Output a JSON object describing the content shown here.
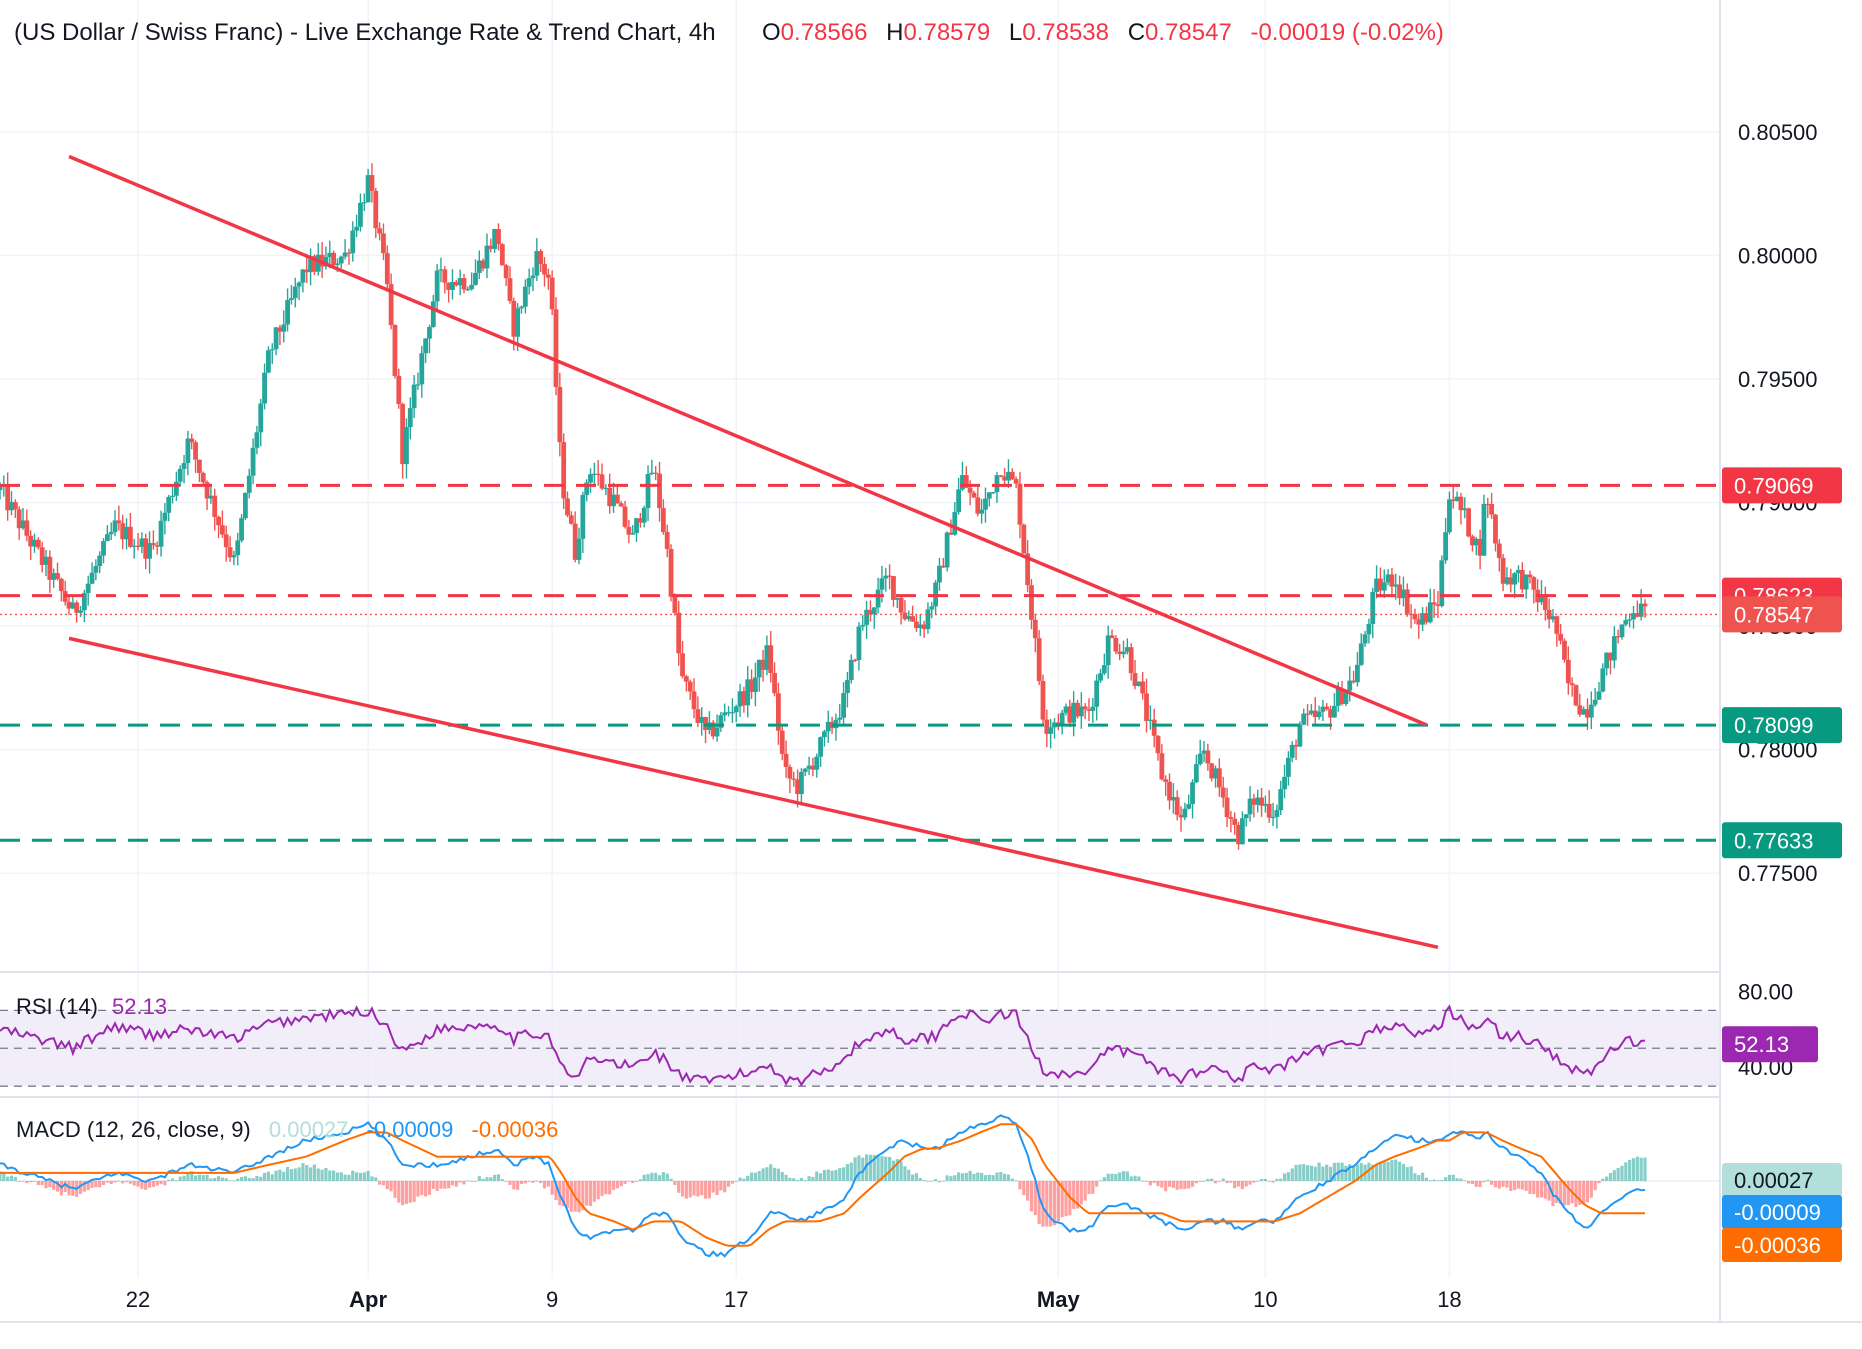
{
  "header": {
    "title": "(US Dollar / Swiss Franc) - Live Exchange Rate & Trend Chart, 4h",
    "open_label": "O",
    "open": "0.78566",
    "high_label": "H",
    "high": "0.78579",
    "low_label": "L",
    "low": "0.78538",
    "close_label": "C",
    "close": "0.78547",
    "change": "-0.00019 (-0.02%)"
  },
  "colors": {
    "up": "#26a69a",
    "down": "#ef5350",
    "trend": "#f23645",
    "resistance": "#f23645",
    "support": "#089981",
    "rsi": "#9c27b0",
    "rsi_band": "#ede7f6",
    "macd": "#2196f3",
    "signal": "#ff6d00"
  },
  "chart_data": [
    {
      "type": "candlestick",
      "name": "price",
      "y_ticks": [
        "0.80500",
        "0.80000",
        "0.79500",
        "0.79000",
        "0.78500",
        "0.78000",
        "0.77500"
      ],
      "y_range": [
        0.771,
        0.8075
      ],
      "x_range_days": [
        -2.0,
        62.6
      ],
      "x_ticks": [
        {
          "label": "22",
          "day": 4
        },
        {
          "label": "Apr",
          "day": 14
        },
        {
          "label": "9",
          "day": 22
        },
        {
          "label": "17",
          "day": 30
        },
        {
          "label": "May",
          "day": 44
        },
        {
          "label": "10",
          "day": 53
        },
        {
          "label": "18",
          "day": 61
        }
      ],
      "last_price": "0.78547",
      "levels": [
        {
          "label": "0.79069",
          "value": 0.79069,
          "kind": "resistance"
        },
        {
          "label": "0.78623",
          "value": 0.78623,
          "kind": "resistance"
        },
        {
          "label": "0.78099",
          "value": 0.78099,
          "kind": "support"
        },
        {
          "label": "0.77633",
          "value": 0.77633,
          "kind": "support"
        }
      ],
      "trendlines": [
        {
          "name": "descending-resistance",
          "from": [
            1.0,
            0.804
          ],
          "to": [
            60.0,
            0.781
          ]
        },
        {
          "name": "descending-support",
          "from": [
            1.0,
            0.7845
          ],
          "to": [
            60.5,
            0.772
          ]
        }
      ],
      "anchors": [
        [
          -2.0,
          0.7905
        ],
        [
          1.2,
          0.7855
        ],
        [
          3.0,
          0.789
        ],
        [
          4.6,
          0.788
        ],
        [
          6.2,
          0.7925
        ],
        [
          8.2,
          0.7875
        ],
        [
          9.7,
          0.796
        ],
        [
          11.3,
          0.7995
        ],
        [
          13.0,
          0.8
        ],
        [
          14.0,
          0.803
        ],
        [
          14.8,
          0.799
        ],
        [
          15.5,
          0.792
        ],
        [
          17.0,
          0.799
        ],
        [
          18.5,
          0.799
        ],
        [
          19.6,
          0.801
        ],
        [
          20.3,
          0.797
        ],
        [
          21.3,
          0.8
        ],
        [
          21.9,
          0.799
        ],
        [
          22.4,
          0.791
        ],
        [
          23.0,
          0.788
        ],
        [
          23.6,
          0.7915
        ],
        [
          24.7,
          0.79
        ],
        [
          25.5,
          0.7885
        ],
        [
          26.4,
          0.7915
        ],
        [
          27.0,
          0.788
        ],
        [
          27.6,
          0.783
        ],
        [
          28.7,
          0.7805
        ],
        [
          29.6,
          0.7815
        ],
        [
          30.6,
          0.7825
        ],
        [
          31.4,
          0.784
        ],
        [
          32.1,
          0.779
        ],
        [
          32.7,
          0.7785
        ],
        [
          33.6,
          0.78
        ],
        [
          34.7,
          0.782
        ],
        [
          35.4,
          0.785
        ],
        [
          36.6,
          0.787
        ],
        [
          37.3,
          0.7855
        ],
        [
          38.1,
          0.785
        ],
        [
          38.7,
          0.7865
        ],
        [
          39.8,
          0.791
        ],
        [
          40.6,
          0.7895
        ],
        [
          41.5,
          0.7915
        ],
        [
          42.2,
          0.7905
        ],
        [
          42.9,
          0.785
        ],
        [
          43.4,
          0.781
        ],
        [
          44.5,
          0.7815
        ],
        [
          45.3,
          0.7815
        ],
        [
          46.2,
          0.7845
        ],
        [
          47.0,
          0.784
        ],
        [
          47.8,
          0.7815
        ],
        [
          48.5,
          0.779
        ],
        [
          49.4,
          0.777
        ],
        [
          50.3,
          0.78
        ],
        [
          51.2,
          0.778
        ],
        [
          51.8,
          0.7765
        ],
        [
          52.5,
          0.778
        ],
        [
          53.4,
          0.7775
        ],
        [
          54.5,
          0.781
        ],
        [
          55.7,
          0.7815
        ],
        [
          56.9,
          0.783
        ],
        [
          57.8,
          0.7865
        ],
        [
          58.6,
          0.787
        ],
        [
          59.6,
          0.785
        ],
        [
          60.5,
          0.786
        ],
        [
          61.0,
          0.7905
        ],
        [
          61.6,
          0.7895
        ],
        [
          62.3,
          0.788
        ],
        [
          62.6,
          0.7905
        ],
        [
          63.3,
          0.787
        ],
        [
          64.1,
          0.787
        ],
        [
          65.0,
          0.786
        ],
        [
          65.6,
          0.785
        ],
        [
          66.2,
          0.7825
        ],
        [
          66.9,
          0.7815
        ],
        [
          67.6,
          0.783
        ],
        [
          68.5,
          0.785
        ],
        [
          69.0,
          0.7858
        ],
        [
          69.5,
          0.7855
        ]
      ]
    },
    {
      "type": "line",
      "name": "RSI",
      "title": "RSI (14)",
      "current": "52.13",
      "y_ticks": [
        "80.00",
        "40.00"
      ],
      "y_range": [
        28,
        86
      ],
      "bands": [
        70,
        50,
        30
      ],
      "anchors": [
        [
          -2.0,
          60
        ],
        [
          1.2,
          50
        ],
        [
          3.0,
          62
        ],
        [
          4.6,
          57
        ],
        [
          6.2,
          60
        ],
        [
          8.2,
          55
        ],
        [
          9.7,
          63
        ],
        [
          11.3,
          66
        ],
        [
          13.0,
          68
        ],
        [
          14.0,
          70
        ],
        [
          14.8,
          62
        ],
        [
          15.5,
          48
        ],
        [
          17.0,
          60
        ],
        [
          18.5,
          62
        ],
        [
          19.6,
          63
        ],
        [
          20.3,
          55
        ],
        [
          21.3,
          58
        ],
        [
          21.9,
          57
        ],
        [
          22.4,
          40
        ],
        [
          23.0,
          33
        ],
        [
          23.6,
          45
        ],
        [
          24.7,
          42
        ],
        [
          25.5,
          40
        ],
        [
          26.4,
          48
        ],
        [
          27.0,
          43
        ],
        [
          27.6,
          35
        ],
        [
          28.7,
          32
        ],
        [
          29.6,
          35
        ],
        [
          30.6,
          37
        ],
        [
          31.4,
          42
        ],
        [
          32.1,
          34
        ],
        [
          32.7,
          33
        ],
        [
          33.6,
          37
        ],
        [
          34.7,
          45
        ],
        [
          35.4,
          53
        ],
        [
          36.6,
          60
        ],
        [
          37.3,
          55
        ],
        [
          38.1,
          55
        ],
        [
          38.7,
          57
        ],
        [
          39.8,
          70
        ],
        [
          40.6,
          64
        ],
        [
          41.5,
          68
        ],
        [
          42.2,
          67
        ],
        [
          42.9,
          48
        ],
        [
          43.4,
          38
        ],
        [
          44.5,
          37
        ],
        [
          45.3,
          36
        ],
        [
          46.2,
          50
        ],
        [
          47.0,
          48
        ],
        [
          47.8,
          44
        ],
        [
          48.5,
          38
        ],
        [
          49.4,
          34
        ],
        [
          50.3,
          40
        ],
        [
          51.2,
          38
        ],
        [
          51.8,
          34
        ],
        [
          52.5,
          40
        ],
        [
          53.4,
          38
        ],
        [
          54.5,
          45
        ],
        [
          55.7,
          50
        ],
        [
          56.9,
          53
        ],
        [
          57.8,
          60
        ],
        [
          58.6,
          62
        ],
        [
          59.6,
          58
        ],
        [
          60.5,
          60
        ],
        [
          61.0,
          70
        ],
        [
          61.6,
          65
        ],
        [
          62.3,
          58
        ],
        [
          62.6,
          66
        ],
        [
          63.3,
          56
        ],
        [
          64.1,
          56
        ],
        [
          65.0,
          52
        ],
        [
          65.6,
          46
        ],
        [
          66.2,
          40
        ],
        [
          66.9,
          35
        ],
        [
          67.6,
          44
        ],
        [
          68.5,
          52
        ],
        [
          69.0,
          54
        ],
        [
          69.5,
          52
        ]
      ]
    },
    {
      "type": "line",
      "name": "MACD",
      "title": "MACD (12, 26, close, 9)",
      "histogram_value": "0.00027",
      "macd_value": "-0.00009",
      "signal_value": "-0.00036",
      "y_range": [
        -0.0011,
        0.001
      ],
      "macd_anchors": [
        [
          -2.0,
          0.0002
        ],
        [
          1.2,
          -0.0001
        ],
        [
          3.0,
          0.0001
        ],
        [
          4.6,
          0.0
        ],
        [
          6.2,
          0.0002
        ],
        [
          8.2,
          0.0001
        ],
        [
          9.7,
          0.0003
        ],
        [
          11.3,
          0.0005
        ],
        [
          13.0,
          0.0006
        ],
        [
          14.0,
          0.0007
        ],
        [
          14.8,
          0.0005
        ],
        [
          15.5,
          0.0002
        ],
        [
          17.0,
          0.0002
        ],
        [
          18.5,
          0.0003
        ],
        [
          19.6,
          0.0004
        ],
        [
          20.3,
          0.0002
        ],
        [
          21.3,
          0.0003
        ],
        [
          21.9,
          0.0002
        ],
        [
          22.4,
          -0.0002
        ],
        [
          23.0,
          -0.0006
        ],
        [
          23.6,
          -0.0007
        ],
        [
          24.7,
          -0.0006
        ],
        [
          25.5,
          -0.0006
        ],
        [
          26.4,
          -0.0004
        ],
        [
          27.0,
          -0.0004
        ],
        [
          27.6,
          -0.0007
        ],
        [
          28.7,
          -0.0009
        ],
        [
          29.6,
          -0.0009
        ],
        [
          30.6,
          -0.0007
        ],
        [
          31.4,
          -0.0004
        ],
        [
          32.1,
          -0.0004
        ],
        [
          32.7,
          -0.0005
        ],
        [
          33.6,
          -0.0004
        ],
        [
          34.7,
          -0.0002
        ],
        [
          35.4,
          0.0001
        ],
        [
          36.6,
          0.0004
        ],
        [
          37.3,
          0.0005
        ],
        [
          38.1,
          0.0004
        ],
        [
          38.7,
          0.0004
        ],
        [
          39.8,
          0.0006
        ],
        [
          40.6,
          0.0007
        ],
        [
          41.5,
          0.0008
        ],
        [
          42.2,
          0.0007
        ],
        [
          42.9,
          0.0001
        ],
        [
          43.4,
          -0.0004
        ],
        [
          44.5,
          -0.0006
        ],
        [
          45.3,
          -0.0006
        ],
        [
          46.2,
          -0.0003
        ],
        [
          47.0,
          -0.0003
        ],
        [
          47.8,
          -0.0004
        ],
        [
          48.5,
          -0.0005
        ],
        [
          49.4,
          -0.0006
        ],
        [
          50.3,
          -0.0005
        ],
        [
          51.2,
          -0.0005
        ],
        [
          51.8,
          -0.0006
        ],
        [
          52.5,
          -0.0005
        ],
        [
          53.4,
          -0.0005
        ],
        [
          54.5,
          -0.0002
        ],
        [
          55.7,
          0.0
        ],
        [
          56.9,
          0.0002
        ],
        [
          57.8,
          0.0004
        ],
        [
          58.6,
          0.0006
        ],
        [
          59.6,
          0.0005
        ],
        [
          60.5,
          0.0005
        ],
        [
          61.0,
          0.0006
        ],
        [
          61.6,
          0.0006
        ],
        [
          62.3,
          0.0005
        ],
        [
          62.6,
          0.0006
        ],
        [
          63.3,
          0.0004
        ],
        [
          64.1,
          0.0003
        ],
        [
          65.0,
          0.0001
        ],
        [
          65.6,
          -0.0002
        ],
        [
          66.2,
          -0.0004
        ],
        [
          66.9,
          -0.0006
        ],
        [
          67.6,
          -0.0004
        ],
        [
          68.5,
          -0.0002
        ],
        [
          69.0,
          -0.0001
        ],
        [
          69.5,
          -0.0001
        ]
      ],
      "signal_anchors": [
        [
          -2.0,
          0.0001
        ],
        [
          1.2,
          0.0001
        ],
        [
          3.0,
          0.0001
        ],
        [
          4.6,
          0.0001
        ],
        [
          6.2,
          0.0001
        ],
        [
          8.2,
          0.0001
        ],
        [
          9.7,
          0.0002
        ],
        [
          11.3,
          0.0003
        ],
        [
          13.0,
          0.0005
        ],
        [
          14.0,
          0.0006
        ],
        [
          14.8,
          0.0006
        ],
        [
          15.5,
          0.0005
        ],
        [
          17.0,
          0.0003
        ],
        [
          18.5,
          0.0003
        ],
        [
          19.6,
          0.0003
        ],
        [
          20.3,
          0.0003
        ],
        [
          21.3,
          0.0003
        ],
        [
          21.9,
          0.0003
        ],
        [
          22.4,
          0.0001
        ],
        [
          23.0,
          -0.0002
        ],
        [
          23.6,
          -0.0004
        ],
        [
          24.7,
          -0.0005
        ],
        [
          25.5,
          -0.0006
        ],
        [
          26.4,
          -0.0005
        ],
        [
          27.0,
          -0.0005
        ],
        [
          27.6,
          -0.0005
        ],
        [
          28.7,
          -0.0007
        ],
        [
          29.6,
          -0.0008
        ],
        [
          30.6,
          -0.0008
        ],
        [
          31.4,
          -0.0006
        ],
        [
          32.1,
          -0.0005
        ],
        [
          32.7,
          -0.0005
        ],
        [
          33.6,
          -0.0005
        ],
        [
          34.7,
          -0.0004
        ],
        [
          35.4,
          -0.0002
        ],
        [
          36.6,
          0.0001
        ],
        [
          37.3,
          0.0003
        ],
        [
          38.1,
          0.0004
        ],
        [
          38.7,
          0.0004
        ],
        [
          39.8,
          0.0005
        ],
        [
          40.6,
          0.0006
        ],
        [
          41.5,
          0.0007
        ],
        [
          42.2,
          0.0007
        ],
        [
          42.9,
          0.0005
        ],
        [
          43.4,
          0.0002
        ],
        [
          44.5,
          -0.0002
        ],
        [
          45.3,
          -0.0004
        ],
        [
          46.2,
          -0.0004
        ],
        [
          47.0,
          -0.0004
        ],
        [
          47.8,
          -0.0004
        ],
        [
          48.5,
          -0.0004
        ],
        [
          49.4,
          -0.0005
        ],
        [
          50.3,
          -0.0005
        ],
        [
          51.2,
          -0.0005
        ],
        [
          51.8,
          -0.0005
        ],
        [
          52.5,
          -0.0005
        ],
        [
          53.4,
          -0.0005
        ],
        [
          54.5,
          -0.0004
        ],
        [
          55.7,
          -0.0002
        ],
        [
          56.9,
          0.0
        ],
        [
          57.8,
          0.0002
        ],
        [
          58.6,
          0.0003
        ],
        [
          59.6,
          0.0004
        ],
        [
          60.5,
          0.0005
        ],
        [
          61.0,
          0.0005
        ],
        [
          61.6,
          0.0006
        ],
        [
          62.3,
          0.0006
        ],
        [
          62.6,
          0.0006
        ],
        [
          63.3,
          0.0005
        ],
        [
          64.1,
          0.0004
        ],
        [
          65.0,
          0.0003
        ],
        [
          65.6,
          0.0001
        ],
        [
          66.2,
          -0.0001
        ],
        [
          66.9,
          -0.0003
        ],
        [
          67.6,
          -0.0004
        ],
        [
          68.5,
          -0.0004
        ],
        [
          69.0,
          -0.0004
        ],
        [
          69.5,
          -0.0004
        ]
      ]
    }
  ]
}
